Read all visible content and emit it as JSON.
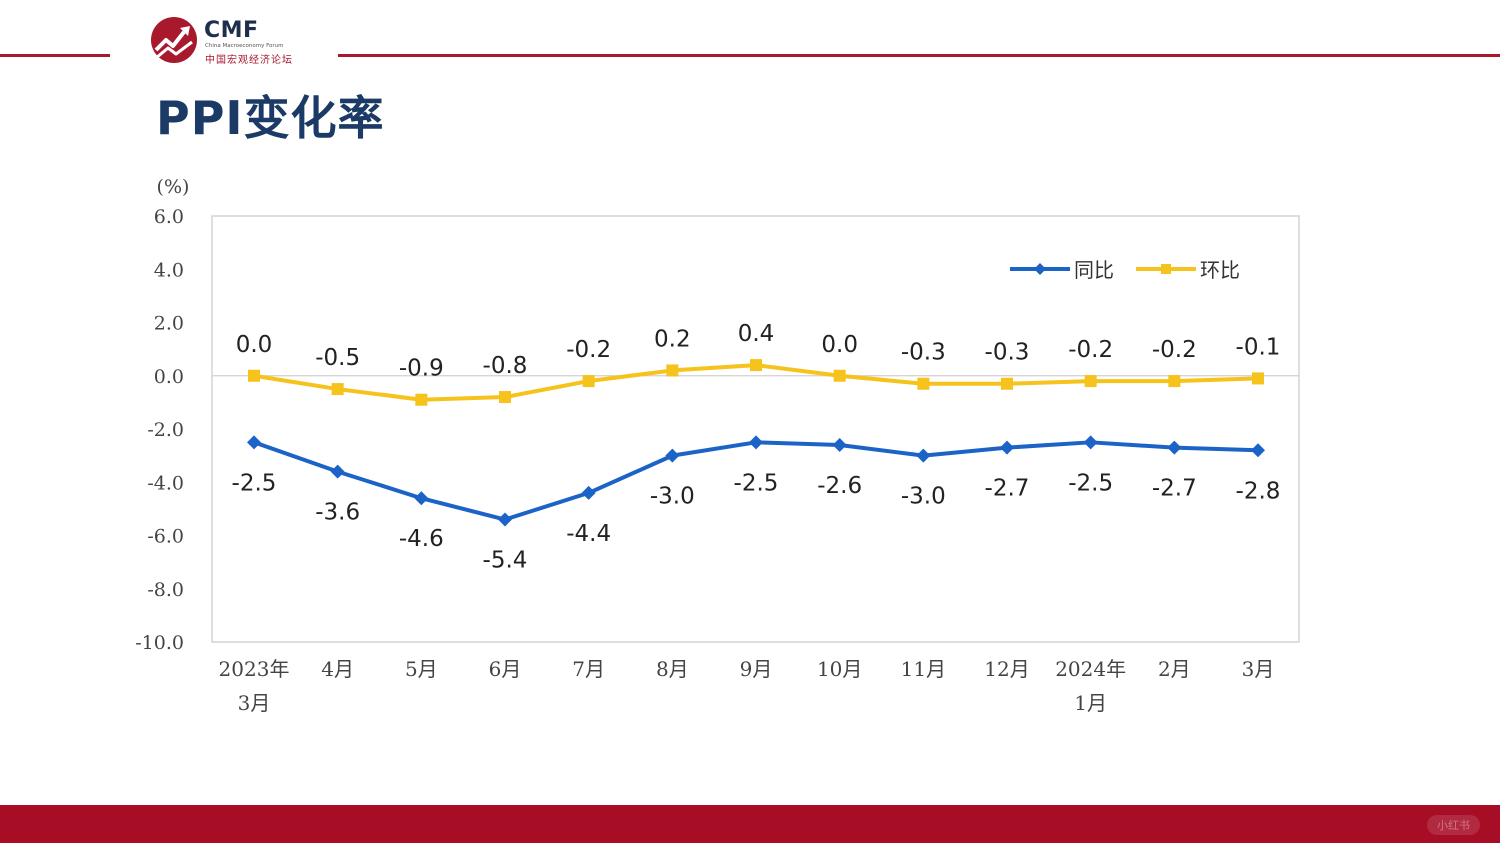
{
  "logo": {
    "name": "CMF",
    "subtitle": "China Macroeconomy Forum",
    "chinese_name": "中国宏观经济论坛",
    "brand_color": "#a8192e"
  },
  "title": "PPI变化率",
  "watermark": "小红书",
  "colors": {
    "accent_red": "#a80d26",
    "title_blue": "#1b3a66",
    "series_yoy": "#1c63c8",
    "series_mom": "#f6c21c"
  },
  "chart_data": {
    "type": "line",
    "unit_label": "(%)",
    "categories": [
      [
        "2023年",
        "3月"
      ],
      [
        "4月"
      ],
      [
        "5月"
      ],
      [
        "6月"
      ],
      [
        "7月"
      ],
      [
        "8月"
      ],
      [
        "9月"
      ],
      [
        "10月"
      ],
      [
        "11月"
      ],
      [
        "12月"
      ],
      [
        "2024年",
        "1月"
      ],
      [
        "2月"
      ],
      [
        "3月"
      ]
    ],
    "ylim": [
      -10,
      6
    ],
    "yticks": [
      "6.0",
      "4.0",
      "2.0",
      "0.0",
      "-2.0",
      "-4.0",
      "-6.0",
      "-8.0",
      "-10.0"
    ],
    "series": [
      {
        "name": "同比",
        "color": "#1c63c8",
        "marker": "diamond",
        "values": [
          -2.5,
          -3.6,
          -4.6,
          -5.4,
          -4.4,
          -3.0,
          -2.5,
          -2.6,
          -3.0,
          -2.7,
          -2.5,
          -2.7,
          -2.8
        ],
        "labels": [
          "-2.5",
          "-3.6",
          "-4.6",
          "-5.4",
          "-4.4",
          "-3.0",
          "-2.5",
          "-2.6",
          "-3.0",
          "-2.7",
          "-2.5",
          "-2.7",
          "-2.8"
        ]
      },
      {
        "name": "环比",
        "color": "#f6c21c",
        "marker": "square",
        "values": [
          0.0,
          -0.5,
          -0.9,
          -0.8,
          -0.2,
          0.2,
          0.4,
          0.0,
          -0.3,
          -0.3,
          -0.2,
          -0.2,
          -0.1
        ],
        "labels": [
          "0.0",
          "-0.5",
          "-0.9",
          "-0.8",
          "-0.2",
          "0.2",
          "0.4",
          "0.0",
          "-0.3",
          "-0.3",
          "-0.2",
          "-0.2",
          "-0.1"
        ]
      }
    ],
    "legend_position": "top-right",
    "grid": false
  }
}
